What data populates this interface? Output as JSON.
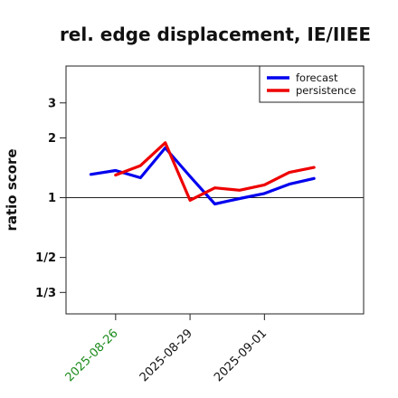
{
  "chart_data": {
    "type": "line",
    "title": "rel. edge displacement, IE/IIEE",
    "xlabel": "",
    "ylabel": "ratio score",
    "y_scale": "log",
    "ylim": [
      0.26,
      4.6
    ],
    "xlim": [
      "2025-08-24",
      "2025-09-05"
    ],
    "reference_line": 1,
    "grid": false,
    "legend_position": "top-right",
    "y_ticks": [
      {
        "value": 3,
        "label": "3"
      },
      {
        "value": 2,
        "label": "2"
      },
      {
        "value": 1,
        "label": "1"
      },
      {
        "value": 0.5,
        "label": "1/2"
      },
      {
        "value": 0.3333,
        "label": "1/3"
      }
    ],
    "x_ticks": [
      {
        "value": "2025-08-26",
        "label": "2025-08-26",
        "color": "#1a8a1a"
      },
      {
        "value": "2025-08-29",
        "label": "2025-08-29",
        "color": "#111111"
      },
      {
        "value": "2025-09-01",
        "label": "2025-09-01",
        "color": "#111111"
      }
    ],
    "series": [
      {
        "name": "forecast",
        "color": "#0000ee",
        "points": [
          {
            "x": "2025-08-25",
            "y": 1.31
          },
          {
            "x": "2025-08-26",
            "y": 1.37
          },
          {
            "x": "2025-08-27",
            "y": 1.26
          },
          {
            "x": "2025-08-28",
            "y": 1.78
          },
          {
            "x": "2025-08-29",
            "y": 1.28
          },
          {
            "x": "2025-08-30",
            "y": 0.93
          },
          {
            "x": "2025-08-31",
            "y": 0.99
          },
          {
            "x": "2025-09-01",
            "y": 1.05
          },
          {
            "x": "2025-09-02",
            "y": 1.17
          },
          {
            "x": "2025-09-03",
            "y": 1.25
          }
        ]
      },
      {
        "name": "persistence",
        "color": "#ee0000",
        "points": [
          {
            "x": "2025-08-26",
            "y": 1.3
          },
          {
            "x": "2025-08-27",
            "y": 1.45
          },
          {
            "x": "2025-08-28",
            "y": 1.89
          },
          {
            "x": "2025-08-29",
            "y": 0.97
          },
          {
            "x": "2025-08-30",
            "y": 1.12
          },
          {
            "x": "2025-08-31",
            "y": 1.09
          },
          {
            "x": "2025-09-01",
            "y": 1.16
          },
          {
            "x": "2025-09-02",
            "y": 1.34
          },
          {
            "x": "2025-09-03",
            "y": 1.42
          }
        ]
      }
    ]
  }
}
